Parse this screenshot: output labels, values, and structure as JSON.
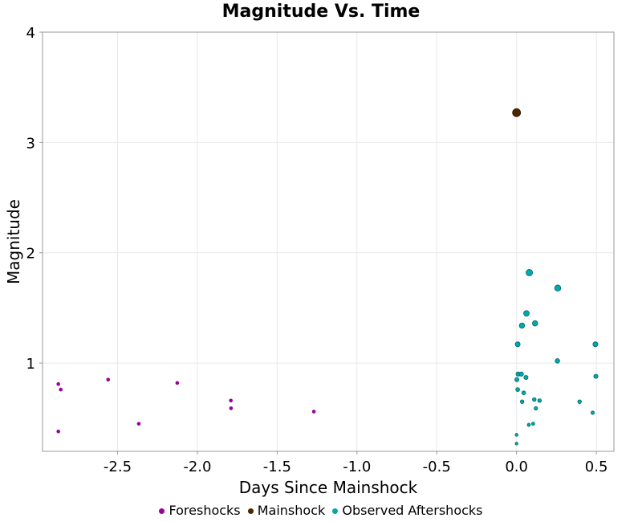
{
  "chart_data": {
    "type": "scatter",
    "title": "Magnitude Vs. Time",
    "xlabel": "Days Since Mainshock",
    "ylabel": "Magnitude",
    "xlim": [
      -2.97,
      0.61
    ],
    "ylim": [
      0.2,
      4
    ],
    "xticks": [
      -2.5,
      -2.0,
      -1.5,
      -1.0,
      -0.5,
      0.0,
      0.5
    ],
    "xtick_labels": [
      "-2.5",
      "-2.0",
      "-1.5",
      "-1.0",
      "-0.5",
      "0.0",
      "0.5"
    ],
    "yticks": [
      1,
      2,
      3,
      4
    ],
    "ytick_labels": [
      "1",
      "2",
      "3",
      "4"
    ],
    "grid": true,
    "legend_placement": "bottom",
    "series": [
      {
        "name": "Foreshocks",
        "color": "#990099",
        "points": [
          [
            -2.871,
            0.81
          ],
          [
            -2.856,
            0.76
          ],
          [
            -2.559,
            0.85
          ],
          [
            -2.871,
            0.38
          ],
          [
            -2.367,
            0.45
          ],
          [
            -2.126,
            0.82
          ],
          [
            -1.79,
            0.66
          ],
          [
            -1.789,
            0.59
          ],
          [
            -1.27,
            0.56
          ]
        ]
      },
      {
        "name": "Mainshock",
        "color": "#4d2600",
        "points": [
          [
            0.0,
            3.27
          ]
        ]
      },
      {
        "name": "Observed Aftershocks",
        "color": "#00aaaa",
        "points": [
          [
            0.08,
            1.82
          ],
          [
            0.258,
            1.68
          ],
          [
            0.062,
            1.45
          ],
          [
            0.034,
            1.34
          ],
          [
            0.116,
            1.36
          ],
          [
            0.007,
            1.17
          ],
          [
            0.494,
            1.17
          ],
          [
            0.256,
            1.02
          ],
          [
            0.01,
            0.9
          ],
          [
            0.03,
            0.9
          ],
          [
            0.059,
            0.87
          ],
          [
            0.002,
            0.85
          ],
          [
            0.497,
            0.88
          ],
          [
            0.007,
            0.76
          ],
          [
            0.045,
            0.73
          ],
          [
            0.035,
            0.65
          ],
          [
            0.111,
            0.67
          ],
          [
            0.144,
            0.66
          ],
          [
            0.121,
            0.59
          ],
          [
            0.395,
            0.65
          ],
          [
            0.477,
            0.55
          ],
          [
            0.077,
            0.44
          ],
          [
            0.104,
            0.45
          ],
          [
            0.0,
            0.35
          ],
          [
            0.0,
            0.27
          ]
        ]
      }
    ]
  }
}
